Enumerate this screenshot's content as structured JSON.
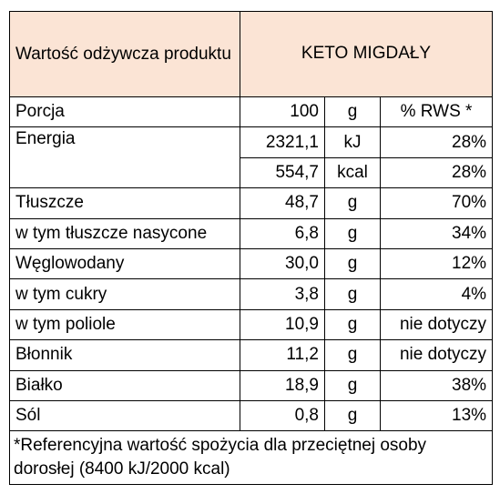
{
  "header": {
    "label": "Wartość odżywcza produktu",
    "product": "KETO MIGDAŁY"
  },
  "portion": {
    "label": "Porcja",
    "value": "100",
    "unit": "g",
    "rws": "% RWS *"
  },
  "energy": {
    "label": "Energia",
    "kj": {
      "value": "2321,1",
      "unit": "kJ",
      "rws": "28%"
    },
    "kcal": {
      "value": "554,7",
      "unit": "kcal",
      "rws": "28%"
    }
  },
  "nutrients": [
    {
      "label": "Tłuszcze",
      "value": "48,7",
      "unit": "g",
      "rws": "70%"
    },
    {
      "label": "w tym tłuszcze nasycone",
      "value": "6,8",
      "unit": "g",
      "rws": "34%"
    },
    {
      "label": "Węglowodany",
      "value": "30,0",
      "unit": "g",
      "rws": "12%"
    },
    {
      "label": "w tym cukry",
      "value": "3,8",
      "unit": "g",
      "rws": "4%"
    },
    {
      "label": "w tym poliole",
      "value": "10,9",
      "unit": "g",
      "rws": "nie dotyczy"
    },
    {
      "label": "Błonnik",
      "value": "11,2",
      "unit": "g",
      "rws": "nie dotyczy"
    },
    {
      "label": "Białko",
      "value": "18,9",
      "unit": "g",
      "rws": "38%"
    },
    {
      "label": "Sól",
      "value": "0,8",
      "unit": "g",
      "rws": "13%"
    }
  ],
  "footnote": "*Referencyjna wartość spożycia dla przeciętnej osoby dorosłej (8400 kJ/2000 kcal)"
}
